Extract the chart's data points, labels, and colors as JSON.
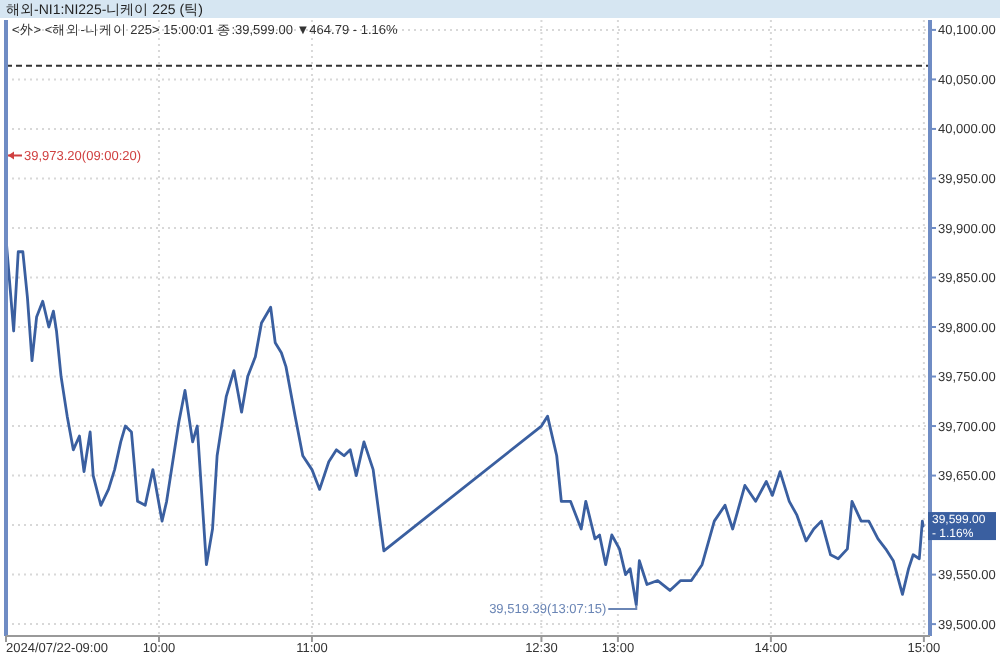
{
  "chart_data": {
    "type": "line",
    "title": "해외-NI1:NI225-니케이 225 (틱)",
    "subtitle": "<外> <해외-니케이 225> 15:00:01 종:39,599.00 ▼464.79 - 1.16%",
    "x": [
      9,
      9.003,
      9.05,
      9.08,
      9.11,
      9.14,
      9.17,
      9.2,
      9.24,
      9.28,
      9.31,
      9.33,
      9.36,
      9.4,
      9.44,
      9.48,
      9.51,
      9.55,
      9.57,
      9.62,
      9.67,
      9.71,
      9.75,
      9.78,
      9.82,
      9.86,
      9.91,
      9.96,
      10.02,
      10.05,
      10.13,
      10.17,
      10.22,
      10.25,
      10.31,
      10.35,
      10.38,
      10.44,
      10.49,
      10.54,
      10.58,
      10.63,
      10.67,
      10.73,
      10.76,
      10.8,
      10.83,
      10.89,
      10.94,
      11,
      11.05,
      11.11,
      11.16,
      11.21,
      11.25,
      11.29,
      11.34,
      11.4,
      11.47,
      12.5,
      12.54,
      12.6,
      12.63,
      12.69,
      12.76,
      12.79,
      12.85,
      12.88,
      12.92,
      12.96,
      13.01,
      13.05,
      13.08,
      13.12,
      13.14,
      13.19,
      13.26,
      13.34,
      13.41,
      13.48,
      13.55,
      13.63,
      13.7,
      13.75,
      13.83,
      13.9,
      13.97,
      14.01,
      14.06,
      14.12,
      14.17,
      14.23,
      14.28,
      14.33,
      14.39,
      14.44,
      14.5,
      14.53,
      14.59,
      14.64,
      14.7,
      14.75,
      14.8,
      14.86,
      14.9,
      14.93,
      14.97,
      14.99,
      14.995
    ],
    "values": [
      39973.2,
      39884,
      39796,
      39876,
      39876,
      39830,
      39766,
      39810,
      39826,
      39800,
      39816,
      39796,
      39750,
      39710,
      39676,
      39690,
      39654,
      39694,
      39650,
      39620,
      39636,
      39656,
      39684,
      39700,
      39694,
      39624,
      39620,
      39656,
      39604,
      39624,
      39704,
      39736,
      39684,
      39700,
      39560,
      39596,
      39670,
      39730,
      39756,
      39714,
      39750,
      39770,
      39804,
      39820,
      39784,
      39774,
      39760,
      39710,
      39670,
      39656,
      39636,
      39664,
      39676,
      39670,
      39676,
      39650,
      39684,
      39656,
      39574,
      39700,
      39710,
      39670,
      39624,
      39624,
      39596,
      39624,
      39586,
      39590,
      39560,
      39590,
      39576,
      39550,
      39556,
      39519.39,
      39564,
      39540,
      39544,
      39534,
      39544,
      39544,
      39560,
      39604,
      39620,
      39596,
      39640,
      39624,
      39644,
      39630,
      39654,
      39624,
      39610,
      39584,
      39596,
      39604,
      39570,
      39566,
      39576,
      39624,
      39604,
      39604,
      39586,
      39576,
      39564,
      39530,
      39556,
      39570,
      39566,
      39604,
      39599
    ],
    "color": "#3a5fa0",
    "line_style": "solid",
    "marker": "none",
    "grid": true,
    "xlim": [
      9,
      15.04
    ],
    "xticks": [
      {
        "value": 9,
        "label": "2024/07/22-09:00"
      },
      {
        "value": 10,
        "label": "10:00"
      },
      {
        "value": 11,
        "label": "11:00"
      },
      {
        "value": 12.5,
        "label": "12:30"
      },
      {
        "value": 13,
        "label": "13:00"
      },
      {
        "value": 14,
        "label": "14:00"
      },
      {
        "value": 15,
        "label": "15:00"
      }
    ],
    "ylim": [
      39488,
      40110
    ],
    "yticks": [
      {
        "value": 39500,
        "label": "39,500.00"
      },
      {
        "value": 39550,
        "label": "39,550.00"
      },
      {
        "value": 39600,
        "label": null
      },
      {
        "value": 39650,
        "label": "39,650.00"
      },
      {
        "value": 39700,
        "label": "39,700.00"
      },
      {
        "value": 39750,
        "label": "39,750.00"
      },
      {
        "value": 39800,
        "label": "39,800.00"
      },
      {
        "value": 39850,
        "label": "39,850.00"
      },
      {
        "value": 39900,
        "label": "39,900.00"
      },
      {
        "value": 39950,
        "label": "39,950.00"
      },
      {
        "value": 40000,
        "label": "40,000.00"
      },
      {
        "value": 40050,
        "label": "40,050.00"
      },
      {
        "value": 40100,
        "label": "40,100.00"
      }
    ],
    "ref_lines": [
      {
        "axis": "y",
        "value": 40063.79,
        "line_style": "dashed",
        "color": "#333333"
      }
    ],
    "annotations": [
      {
        "text": "39,973.20(09:00:20)",
        "x": 9,
        "y": 39973.2
      },
      {
        "text": "39,519.39(13:07:15)",
        "x": 13.12,
        "y": 39519.39
      },
      {
        "text": "39,599.00\n- 1.16%",
        "x": 15.04,
        "y": 39599
      }
    ]
  }
}
